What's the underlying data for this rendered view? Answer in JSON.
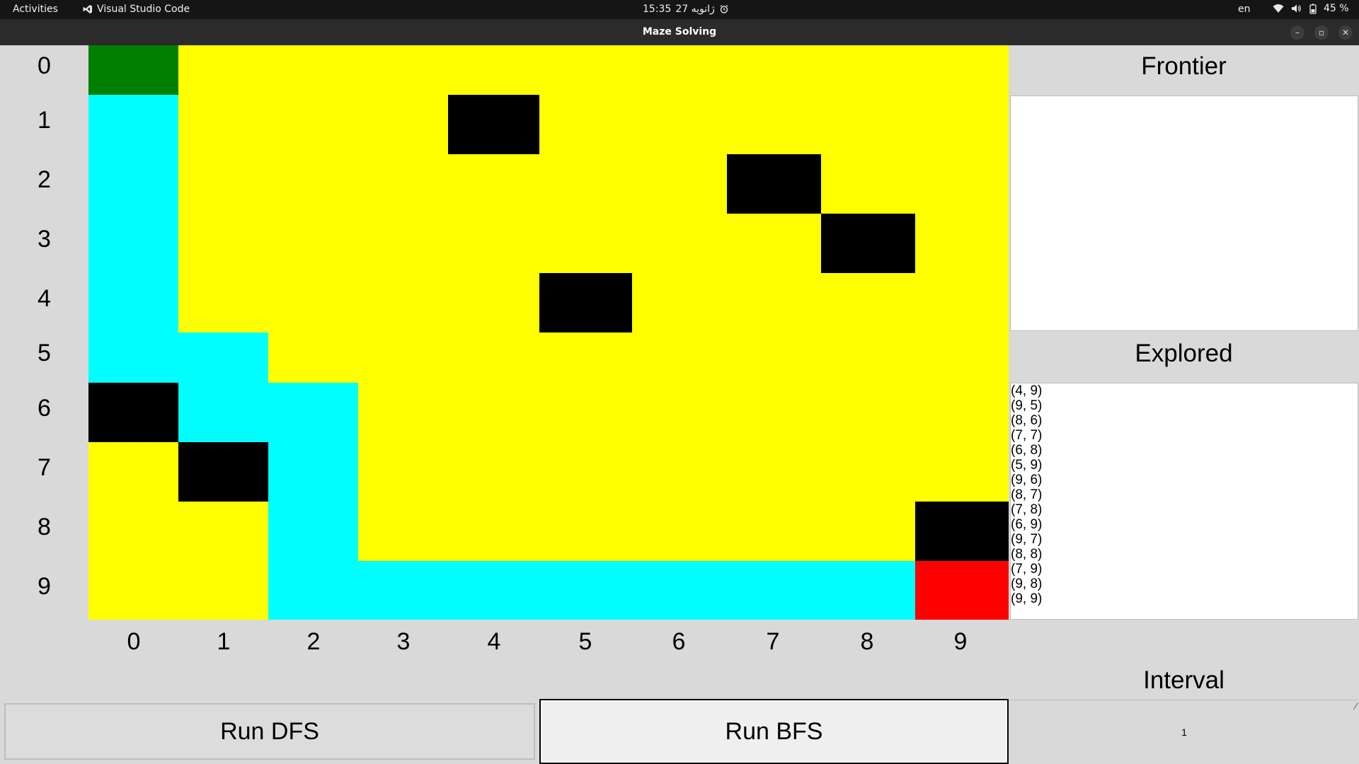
{
  "topbar": {
    "activities": "Activities",
    "app_name": "Visual Studio Code",
    "time": "15:35",
    "date": "27 ژانویه",
    "language": "en",
    "battery": "45 %"
  },
  "window": {
    "title": "Maze Solving",
    "minimize_glyph": "–",
    "maximize_glyph": "▫",
    "close_glyph": "✕"
  },
  "maze": {
    "rows": 10,
    "cols": 10,
    "row_labels": [
      "0",
      "1",
      "2",
      "3",
      "4",
      "5",
      "6",
      "7",
      "8",
      "9"
    ],
    "col_labels": [
      "0",
      "1",
      "2",
      "3",
      "4",
      "5",
      "6",
      "7",
      "8",
      "9"
    ],
    "legend": {
      "S": "start",
      "E": "end",
      "W": "wall",
      "P": "path",
      "X": "explored"
    },
    "colors": {
      "S": "#008000",
      "E": "#ff0000",
      "W": "#000000",
      "P": "#00ffff",
      "X": "#ffff00"
    },
    "grid": [
      "SXXXXXXXXX",
      "PXXXWXXXXX",
      "PXXXXXXWXX",
      "PXXXXXXXWX",
      "PXXXXWXXXX",
      "PPXXXXXXXX",
      "WPPXXXXXXX",
      "XWPXXXXXXX",
      "XXPXXXXXXW",
      "XXPPPPPPPE"
    ]
  },
  "frontier": {
    "title": "Frontier",
    "items": []
  },
  "explored": {
    "title": "Explored",
    "items": [
      "(4, 9)",
      "(9, 5)",
      "(8, 6)",
      "(7, 7)",
      "(6, 8)",
      "(5, 9)",
      "(9, 6)",
      "(8, 7)",
      "(7, 8)",
      "(6, 9)",
      "(9, 7)",
      "(8, 8)",
      "(7, 9)",
      "(9, 8)",
      "(9, 9)"
    ]
  },
  "controls": {
    "run_dfs_label": "Run DFS",
    "run_bfs_label": "Run BFS",
    "interval_label": "Interval",
    "interval_value": "1"
  }
}
